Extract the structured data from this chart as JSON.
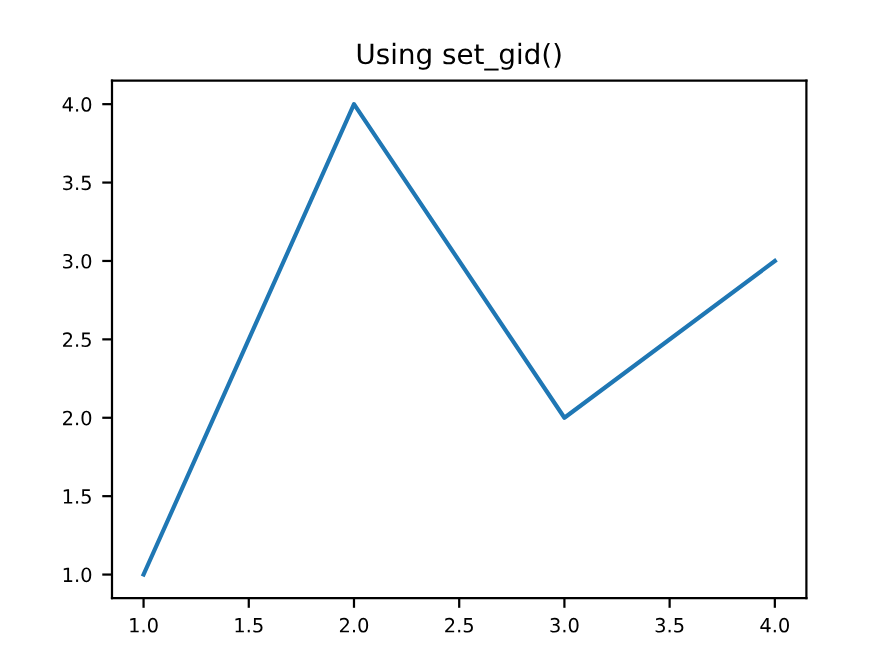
{
  "chart_data": {
    "type": "line",
    "title": "Using set_gid()",
    "x": [
      1,
      2,
      3,
      4
    ],
    "series": [
      {
        "color": "#1f77b4",
        "values": [
          1,
          4,
          2,
          3
        ]
      }
    ],
    "xlim": [
      0.85,
      4.15
    ],
    "ylim": [
      0.85,
      4.15
    ],
    "xticks": [
      {
        "value": 1,
        "label": "1.0"
      },
      {
        "value": 1.5,
        "label": "1.5"
      },
      {
        "value": 2,
        "label": "2.0"
      },
      {
        "value": 2.5,
        "label": "2.5"
      },
      {
        "value": 3,
        "label": "3.0"
      },
      {
        "value": 3.5,
        "label": "3.5"
      },
      {
        "value": 4,
        "label": "4.0"
      }
    ],
    "yticks": [
      {
        "value": 1,
        "label": "1.0"
      },
      {
        "value": 1.5,
        "label": "1.5"
      },
      {
        "value": 2,
        "label": "2.0"
      },
      {
        "value": 2.5,
        "label": "2.5"
      },
      {
        "value": 3,
        "label": "3.0"
      },
      {
        "value": 3.5,
        "label": "3.5"
      },
      {
        "value": 4,
        "label": "4.0"
      }
    ],
    "grid": false,
    "legend": false
  }
}
